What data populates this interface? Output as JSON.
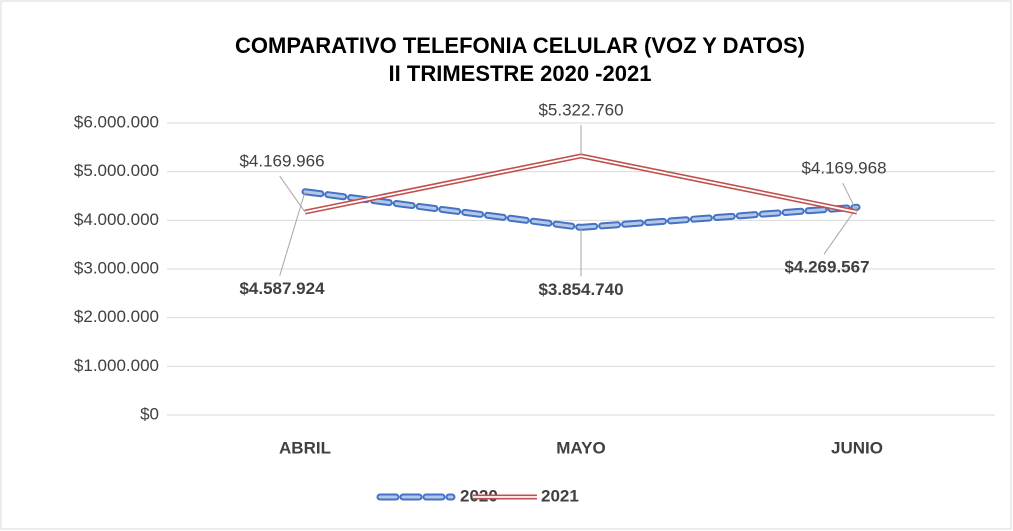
{
  "chart_data": {
    "type": "line",
    "title": "COMPARATIVO TELEFONIA CELULAR (VOZ Y DATOS)",
    "subtitle": "II TRIMESTRE 2020 -2021",
    "categories": [
      "ABRIL",
      "MAYO",
      "JUNIO"
    ],
    "series": [
      {
        "name": "2020",
        "color": "#4472c4",
        "values": [
          4587924,
          3854740,
          4269567
        ],
        "value_labels": [
          "$4.587.924",
          "$3.854.740",
          "$4.269.567"
        ]
      },
      {
        "name": "2021",
        "color": "#c0504d",
        "values": [
          4169966,
          5322760,
          4169968
        ],
        "value_labels": [
          "$4.169.966",
          "$5.322.760",
          "$4.169.968"
        ]
      }
    ],
    "ylim": [
      0,
      6000000
    ],
    "yticks": [
      {
        "value": 0,
        "label": "$0"
      },
      {
        "value": 1000000,
        "label": "$1.000.000"
      },
      {
        "value": 2000000,
        "label": "$2.000.000"
      },
      {
        "value": 3000000,
        "label": "$3.000.000"
      },
      {
        "value": 4000000,
        "label": "$4.000.000"
      },
      {
        "value": 5000000,
        "label": "$5.000.000"
      },
      {
        "value": 6000000,
        "label": "$6.000.000"
      }
    ],
    "grid": true,
    "legend": "bottom"
  }
}
